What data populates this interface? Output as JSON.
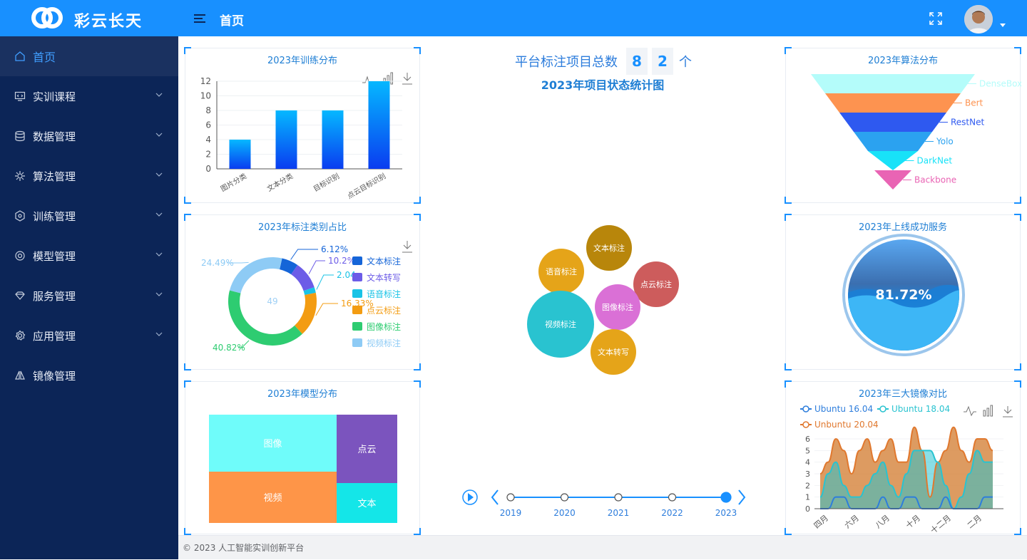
{
  "header": {
    "brand": "彩云长天",
    "title": "首页",
    "icons": [
      "logo-icon",
      "menu-fold-icon",
      "fullscreen-icon",
      "avatar",
      "caret-down-icon"
    ]
  },
  "sidebar": {
    "items": [
      {
        "label": "首页",
        "icon": "home-icon",
        "active": true
      },
      {
        "label": "实训课程",
        "icon": "course-icon"
      },
      {
        "label": "数据管理",
        "icon": "database-icon"
      },
      {
        "label": "算法管理",
        "icon": "algorithm-icon"
      },
      {
        "label": "训练管理",
        "icon": "training-icon"
      },
      {
        "label": "模型管理",
        "icon": "model-icon"
      },
      {
        "label": "服务管理",
        "icon": "service-icon"
      },
      {
        "label": "应用管理",
        "icon": "app-icon"
      },
      {
        "label": "镜像管理",
        "icon": "mirror-icon"
      }
    ]
  },
  "center": {
    "total_label": "平台标注项目总数",
    "digits": [
      "8",
      "2"
    ],
    "unit": "个",
    "status_title": "2023年项目状态统计图",
    "timeline": {
      "years": [
        "2019",
        "2020",
        "2021",
        "2022",
        "2023"
      ],
      "current": "2023"
    }
  },
  "footer": {
    "text": "© 2023 人工智能实训创新平台"
  },
  "colors": {
    "primary": "#1890ff",
    "sidebar": "#0c2557"
  },
  "chart_data": [
    {
      "id": "training",
      "type": "bar",
      "title": "2023年训练分布",
      "categories": [
        "图片分类",
        "文本分类",
        "目标识别",
        "点云目标识别"
      ],
      "values": [
        4,
        8,
        8,
        12
      ],
      "yticks": [
        "0",
        "2",
        "4",
        "6",
        "8",
        "10",
        "12"
      ],
      "ylim": [
        0,
        12
      ]
    },
    {
      "id": "label",
      "type": "pie",
      "title": "2023年标注类别占比",
      "center_label": "49",
      "slices": [
        {
          "name": "文本标注",
          "label": "6.12%",
          "value": 6.12,
          "color": "#1565d8"
        },
        {
          "name": "文本转写",
          "label": "10.2%",
          "value": 10.2,
          "color": "#6c5ce7"
        },
        {
          "name": "语音标注",
          "label": "2.04",
          "value": 2.04,
          "color": "#19c3e6"
        },
        {
          "name": "点云标注",
          "label": "16.33%",
          "value": 16.33,
          "color": "#f39c12"
        },
        {
          "name": "图像标注",
          "label": "40.82%",
          "value": 40.82,
          "color": "#2ecc71"
        },
        {
          "name": "视频标注",
          "label": "24.49%",
          "value": 24.49,
          "color": "#8ecbf5"
        }
      ]
    },
    {
      "id": "model",
      "type": "treemap",
      "title": "2023年模型分布",
      "items": [
        {
          "name": "图像",
          "color": "#6ffcfa"
        },
        {
          "name": "视频",
          "color": "#fe9548"
        },
        {
          "name": "点云",
          "color": "#7b54be"
        },
        {
          "name": "文本",
          "color": "#14e6e8"
        }
      ]
    },
    {
      "id": "bubbles",
      "type": "scatter",
      "title": "2023年项目状态统计图",
      "items": [
        {
          "name": "文本标注",
          "color": "#b8860b"
        },
        {
          "name": "语音标注",
          "color": "#e5a419"
        },
        {
          "name": "点云标注",
          "color": "#cd5c5c"
        },
        {
          "name": "图像标注",
          "color": "#da70d6"
        },
        {
          "name": "视频标注",
          "color": "#29c3d0"
        },
        {
          "name": "文本转写",
          "color": "#e5a419"
        }
      ]
    },
    {
      "id": "algo",
      "type": "funnel",
      "title": "2023年算法分布",
      "items": [
        {
          "name": "DenseBox",
          "color": "#b4fcfa"
        },
        {
          "name": "Bert",
          "color": "#fd9350"
        },
        {
          "name": "RestNet",
          "color": "#2e59f0"
        },
        {
          "name": "Yolo",
          "color": "#2ba2f0"
        },
        {
          "name": "DarkNet",
          "color": "#18e2f8"
        },
        {
          "name": "Backbone",
          "color": "#e964b4"
        }
      ]
    },
    {
      "id": "service",
      "type": "gauge",
      "title": "2023年上线成功服务",
      "value": "81.72%",
      "fraction": 0.8172
    },
    {
      "id": "mirror",
      "type": "area",
      "title": "2023年三大镜像对比",
      "legend": [
        "Ubuntu 16.04",
        "Ubuntu 18.04",
        "Unbuntu 20.04"
      ],
      "xticks": [
        "四月",
        "六月",
        "八月",
        "十月",
        "十二月",
        "二月"
      ],
      "yticks": [
        "0",
        "1",
        "2",
        "3",
        "4",
        "5",
        "6"
      ]
    }
  ]
}
